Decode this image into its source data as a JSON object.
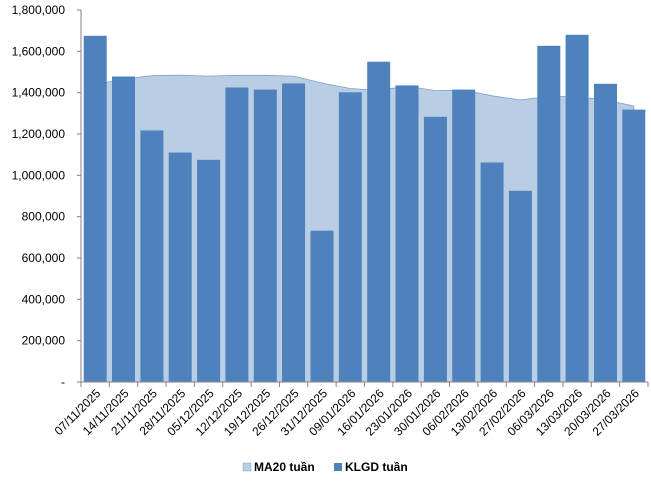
{
  "chart_data": {
    "type": "bar",
    "categories": [
      "07/11/2025",
      "14/11/2025",
      "21/11/2025",
      "28/11/2025",
      "05/12/2025",
      "12/12/2025",
      "19/12/2025",
      "26/12/2025",
      "31/12/2025",
      "09/01/2026",
      "16/01/2026",
      "23/01/2026",
      "30/01/2026",
      "06/02/2026",
      "13/02/2026",
      "27/02/2026",
      "06/03/2026",
      "13/03/2026",
      "20/03/2026",
      "27/03/2026"
    ],
    "series": [
      {
        "name": "KLGD tuần",
        "type": "bar",
        "color": "#4f81bd",
        "values": [
          1675000,
          1478000,
          1217000,
          1110000,
          1075000,
          1425000,
          1415000,
          1445000,
          732000,
          1402000,
          1550000,
          1435000,
          1283000,
          1415000,
          1062000,
          925000,
          1627000,
          1680000,
          1443000,
          1318000
        ]
      },
      {
        "name": "MA20 tuần",
        "type": "area",
        "color": "#b9cde5",
        "values": [
          1440000,
          1465000,
          1482000,
          1485000,
          1480000,
          1484000,
          1484000,
          1480000,
          1447000,
          1420000,
          1411000,
          1432000,
          1410000,
          1412000,
          1385000,
          1365000,
          1382000,
          1380000,
          1365000,
          1335000
        ]
      }
    ],
    "y_tick_labels": [
      "-",
      "200,000",
      "400,000",
      "600,000",
      "800,000",
      "1,000,000",
      "1,200,000",
      "1,400,000",
      "1,600,000",
      "1,800,000"
    ],
    "ylim": [
      0,
      1800000
    ],
    "grid": false,
    "legend_position": "bottom",
    "legend": [
      {
        "label": "MA20 tuần",
        "color": "#b9cde5"
      },
      {
        "label": "KLGD tuần",
        "color": "#4f81bd"
      }
    ]
  }
}
